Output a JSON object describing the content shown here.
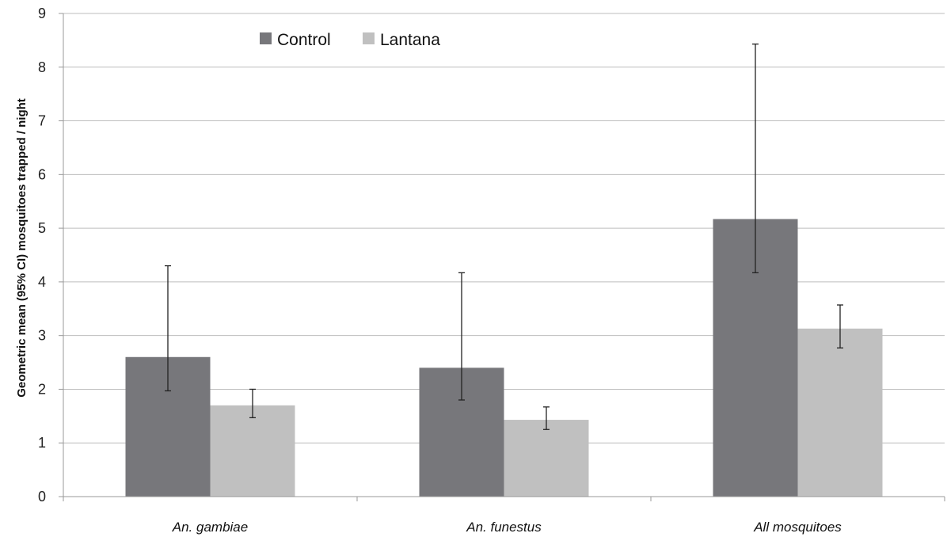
{
  "chart_data": {
    "type": "bar",
    "title": "",
    "xlabel": "",
    "ylabel": "Geometric mean (95% CI) mosquitoes trapped / night",
    "ylim": [
      0,
      9
    ],
    "yticks": [
      0,
      1,
      2,
      3,
      4,
      5,
      6,
      7,
      8,
      9
    ],
    "grid": true,
    "legend_position": "top-left",
    "categories": [
      "An. gambiae",
      "An. funestus",
      "All mosquitoes"
    ],
    "series": [
      {
        "name": "Control",
        "color": "#77777b",
        "values": [
          2.6,
          2.4,
          5.17
        ],
        "ci_low": [
          1.97,
          1.8,
          4.17
        ],
        "ci_high": [
          4.3,
          4.17,
          8.43
        ]
      },
      {
        "name": "Lantana",
        "color": "#c0c0c0",
        "values": [
          1.7,
          1.43,
          3.13
        ],
        "ci_low": [
          1.47,
          1.25,
          2.77
        ],
        "ci_high": [
          2.0,
          1.67,
          3.57
        ]
      }
    ]
  }
}
